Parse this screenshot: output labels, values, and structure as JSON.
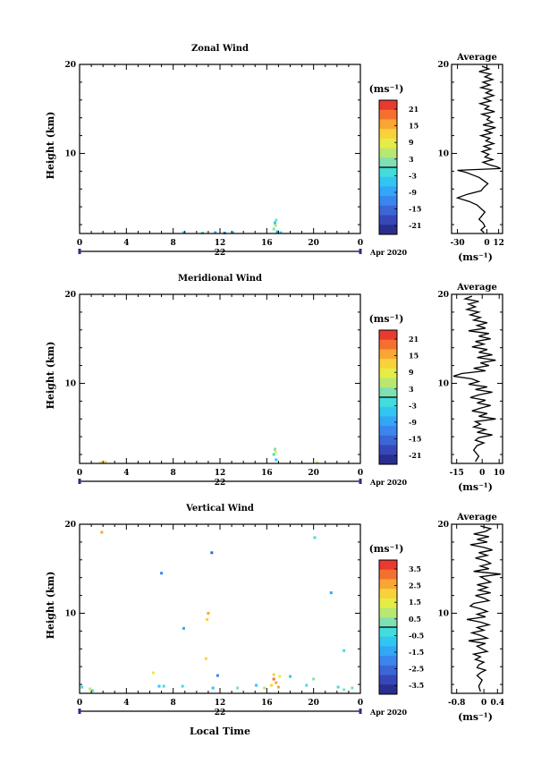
{
  "page": {
    "date_label": "Apr 2020",
    "x_axis_label": "Local Time",
    "day_label": "22"
  },
  "colorbar_palette": [
    "#2a2e8e",
    "#3648b8",
    "#3b66d6",
    "#3a86ee",
    "#33a6f6",
    "#31c6f2",
    "#42dcdc",
    "#7fe0b4",
    "#b8e872",
    "#e6ec46",
    "#f8d23a",
    "#f9a634",
    "#f5702e",
    "#e83a2e"
  ],
  "panels": [
    {
      "title": "Zonal Wind",
      "ylabel": "Height (km)",
      "units": "(ms⁻¹)",
      "colorbar_ticks": [
        "21",
        "15",
        "9",
        "3",
        "-3",
        "-9",
        "-15",
        "-21"
      ],
      "avg_title": "Average",
      "avg_xticks": [
        "-30",
        "0",
        "12"
      ]
    },
    {
      "title": "Meridional Wind",
      "ylabel": "Height (km)",
      "units": "(ms⁻¹)",
      "colorbar_ticks": [
        "21",
        "15",
        "9",
        "3",
        "-3",
        "-9",
        "-15",
        "-21"
      ],
      "avg_title": "Average",
      "avg_xticks": [
        "-15",
        "0",
        "10"
      ]
    },
    {
      "title": "Vertical Wind",
      "ylabel": "Height (km)",
      "units": "(ms⁻¹)",
      "colorbar_ticks": [
        "3.5",
        "2.5",
        "1.5",
        "0.5",
        "-0.5",
        "-1.5",
        "-2.5",
        "-3.5"
      ],
      "avg_title": "Average",
      "avg_xticks": [
        "-0.8",
        "0",
        "0.4"
      ]
    }
  ],
  "chart_data": [
    {
      "type": "heatmap",
      "title": "Zonal Wind",
      "xlabel": "",
      "ylabel": "Height (km)",
      "x_ticks": [
        "0",
        "4",
        "8",
        "12",
        "16",
        "20",
        "0"
      ],
      "y_ticks": [
        "10",
        "20"
      ],
      "xlim": [
        0,
        24
      ],
      "ylim": [
        1,
        20
      ],
      "colorbar_label": "(ms⁻¹)",
      "color_range": [
        -24,
        24
      ],
      "points": [
        [
          8.9,
          1.1,
          -6
        ],
        [
          10.5,
          1.05,
          -3
        ],
        [
          11.6,
          1.1,
          -9
        ],
        [
          12.4,
          1.05,
          -12
        ],
        [
          13.1,
          1.1,
          -6
        ],
        [
          16.6,
          1.5,
          2
        ],
        [
          16.7,
          2.2,
          -4
        ],
        [
          16.8,
          2.5,
          1
        ],
        [
          16.75,
          1.9,
          6
        ],
        [
          16.9,
          1.2,
          -8
        ],
        [
          17.2,
          1.1,
          -2
        ]
      ]
    },
    {
      "type": "line",
      "title": "Average",
      "xlabel": "(ms⁻¹)",
      "ylabel": "",
      "x_ticks": [
        "-30",
        "0",
        "12"
      ],
      "y_ticks": [
        "10",
        "20"
      ],
      "xlim": [
        -36,
        16
      ],
      "ylim": [
        1,
        20
      ],
      "series": [
        {
          "x": [
            -5,
            2,
            -8,
            4,
            -2,
            6,
            -4,
            3,
            -6,
            5,
            -1,
            7,
            -3,
            4,
            -7,
            2,
            -2,
            8,
            -5,
            3,
            0,
            6,
            -4,
            9,
            -2,
            5,
            -6,
            3,
            -1,
            7,
            -3,
            4,
            -5,
            2,
            -2,
            6,
            -4,
            3,
            10,
            14,
            -30,
            -22,
            -15,
            -8,
            -4,
            1,
            -3,
            -6,
            -20,
            -30,
            -18,
            -10,
            -6,
            -2,
            -5,
            -8,
            -4,
            -2,
            -6,
            -3
          ],
          "y": [
            19.8,
            19.5,
            19.2,
            18.9,
            18.6,
            18.3,
            18.0,
            17.7,
            17.4,
            17.1,
            16.8,
            16.5,
            16.2,
            15.9,
            15.6,
            15.3,
            15.0,
            14.7,
            14.4,
            14.1,
            13.8,
            13.5,
            13.2,
            12.9,
            12.6,
            12.3,
            12.0,
            11.7,
            11.4,
            11.1,
            10.8,
            10.5,
            10.2,
            9.9,
            9.6,
            9.3,
            9.0,
            8.7,
            8.5,
            8.3,
            8.1,
            7.9,
            7.6,
            7.3,
            7.0,
            6.6,
            6.2,
            5.8,
            5.4,
            5.0,
            4.6,
            4.2,
            3.8,
            3.4,
            3.0,
            2.6,
            2.2,
            1.8,
            1.4,
            1.1
          ]
        }
      ]
    },
    {
      "type": "heatmap",
      "title": "Meridional Wind",
      "xlabel": "",
      "ylabel": "Height (km)",
      "x_ticks": [
        "0",
        "4",
        "8",
        "12",
        "16",
        "20",
        "0"
      ],
      "y_ticks": [
        "10",
        "20"
      ],
      "xlim": [
        0,
        24
      ],
      "ylim": [
        1,
        20
      ],
      "colorbar_label": "(ms⁻¹)",
      "color_range": [
        -24,
        24
      ],
      "points": [
        [
          1.8,
          1.1,
          9
        ],
        [
          2.2,
          1.15,
          12
        ],
        [
          16.6,
          2.0,
          -3
        ],
        [
          16.7,
          2.6,
          2
        ],
        [
          16.8,
          1.4,
          -6
        ],
        [
          16.75,
          2.3,
          8
        ],
        [
          20.3,
          1.1,
          6
        ]
      ]
    },
    {
      "type": "line",
      "title": "Average",
      "xlabel": "(ms⁻¹)",
      "ylabel": "",
      "x_ticks": [
        "-15",
        "0",
        "10"
      ],
      "y_ticks": [
        "10",
        "20"
      ],
      "xlim": [
        -18,
        12
      ],
      "ylim": [
        1,
        20
      ],
      "series": [
        {
          "x": [
            -6,
            -10,
            -2,
            -8,
            -4,
            -9,
            -2,
            -7,
            -1,
            -5,
            3,
            -3,
            2,
            -8,
            4,
            -2,
            5,
            -4,
            1,
            -6,
            3,
            -2,
            6,
            -3,
            8,
            -1,
            4,
            -5,
            2,
            -12,
            -17,
            -6,
            -2,
            -8,
            3,
            -4,
            6,
            -2,
            -7,
            2,
            -3,
            5,
            -1,
            -6,
            3,
            -2,
            8,
            -4,
            -1,
            -5,
            2,
            -3,
            6,
            -2,
            -4,
            1,
            -3,
            -5,
            -2,
            -4
          ],
          "y": [
            19.8,
            19.5,
            19.2,
            18.9,
            18.6,
            18.3,
            18.0,
            17.7,
            17.4,
            17.1,
            16.8,
            16.5,
            16.2,
            15.9,
            15.6,
            15.3,
            15.0,
            14.7,
            14.4,
            14.1,
            13.8,
            13.5,
            13.2,
            12.9,
            12.6,
            12.3,
            12.0,
            11.7,
            11.4,
            11.1,
            10.8,
            10.5,
            10.2,
            9.9,
            9.6,
            9.3,
            9.0,
            8.7,
            8.4,
            8.1,
            7.8,
            7.5,
            7.2,
            6.9,
            6.6,
            6.3,
            6.0,
            5.7,
            5.4,
            5.1,
            4.8,
            4.5,
            4.2,
            3.9,
            3.6,
            3.3,
            3.0,
            2.5,
            1.8,
            1.2
          ]
        }
      ]
    },
    {
      "type": "heatmap",
      "title": "Vertical Wind",
      "xlabel": "Local Time",
      "ylabel": "Height (km)",
      "x_ticks": [
        "0",
        "4",
        "8",
        "12",
        "16",
        "20",
        "0"
      ],
      "y_ticks": [
        "10",
        "20"
      ],
      "xlim": [
        0,
        24
      ],
      "ylim": [
        1,
        20
      ],
      "colorbar_label": "(ms⁻¹)",
      "color_range": [
        -4,
        4
      ],
      "points": [
        [
          1.9,
          19.1,
          2.5
        ],
        [
          11.3,
          16.8,
          -2.8
        ],
        [
          7.0,
          14.5,
          -1.8
        ],
        [
          20.1,
          18.5,
          -0.5
        ],
        [
          21.5,
          12.3,
          -1.2
        ],
        [
          11.0,
          10.0,
          2.4
        ],
        [
          10.9,
          9.3,
          1.8
        ],
        [
          8.9,
          8.3,
          -1.5
        ],
        [
          22.6,
          5.8,
          -0.4
        ],
        [
          10.8,
          4.9,
          2.0
        ],
        [
          6.3,
          3.3,
          1.4
        ],
        [
          11.8,
          3.0,
          -1.8
        ],
        [
          16.6,
          3.1,
          2.2
        ],
        [
          16.6,
          2.6,
          2.9
        ],
        [
          16.8,
          2.2,
          2.4
        ],
        [
          17.1,
          2.9,
          1.6
        ],
        [
          16.4,
          1.9,
          1.8
        ],
        [
          17.0,
          1.7,
          2.6
        ],
        [
          15.8,
          1.6,
          0.7
        ],
        [
          18.0,
          2.9,
          -0.8
        ],
        [
          20.0,
          2.6,
          0.4
        ],
        [
          0.2,
          1.7,
          -0.3
        ],
        [
          0.9,
          1.5,
          0.8
        ],
        [
          1.1,
          1.3,
          -0.5
        ],
        [
          6.8,
          1.8,
          -0.7
        ],
        [
          7.2,
          1.8,
          -0.3
        ],
        [
          8.8,
          1.8,
          -0.5
        ],
        [
          11.4,
          1.6,
          -0.9
        ],
        [
          13.5,
          1.6,
          0.5
        ],
        [
          15.1,
          1.9,
          -0.6
        ],
        [
          19.4,
          1.9,
          -0.4
        ],
        [
          22.1,
          1.7,
          -0.5
        ],
        [
          22.6,
          1.4,
          0.5
        ],
        [
          23.3,
          1.6,
          0.2
        ]
      ]
    },
    {
      "type": "line",
      "title": "Average",
      "xlabel": "(ms⁻¹)",
      "ylabel": "",
      "x_ticks": [
        "-0.8",
        "0",
        "0.4"
      ],
      "y_ticks": [
        "10",
        "20"
      ],
      "xlim": [
        -0.95,
        0.55
      ],
      "ylim": [
        1,
        20
      ],
      "series": [
        {
          "x": [
            -0.1,
            0.2,
            0.05,
            -0.3,
            0.15,
            -0.2,
            0.1,
            -0.4,
            0.0,
            0.25,
            -0.15,
            0.1,
            -0.25,
            0.05,
            0.2,
            -0.1,
            0.15,
            -0.3,
            0.5,
            -0.1,
            0.05,
            0.2,
            -0.2,
            0.1,
            -0.15,
            0.2,
            -0.25,
            0.0,
            0.15,
            -0.3,
            -0.4,
            -0.1,
            0.1,
            -0.2,
            0.05,
            -0.5,
            -0.1,
            0.15,
            -0.2,
            0.0,
            -0.35,
            -0.1,
            0.1,
            -0.45,
            0.05,
            -0.2,
            -0.05,
            0.1,
            -0.3,
            -0.1,
            -0.25,
            0.0,
            -0.15,
            -0.2,
            0.05,
            -0.1,
            -0.2,
            -0.05,
            -0.15,
            -0.1
          ],
          "y": [
            19.8,
            19.5,
            19.2,
            18.9,
            18.6,
            18.3,
            18.0,
            17.7,
            17.4,
            17.1,
            16.8,
            16.5,
            16.2,
            15.9,
            15.6,
            15.3,
            15.0,
            14.7,
            14.4,
            14.1,
            13.8,
            13.5,
            13.2,
            12.9,
            12.6,
            12.3,
            12.0,
            11.7,
            11.4,
            11.1,
            10.8,
            10.5,
            10.2,
            9.9,
            9.6,
            9.3,
            9.0,
            8.7,
            8.4,
            8.1,
            7.8,
            7.5,
            7.2,
            6.9,
            6.6,
            6.3,
            6.0,
            5.7,
            5.4,
            5.1,
            4.8,
            4.5,
            4.2,
            3.9,
            3.6,
            3.3,
            3.0,
            2.5,
            1.8,
            1.2
          ]
        }
      ]
    }
  ]
}
